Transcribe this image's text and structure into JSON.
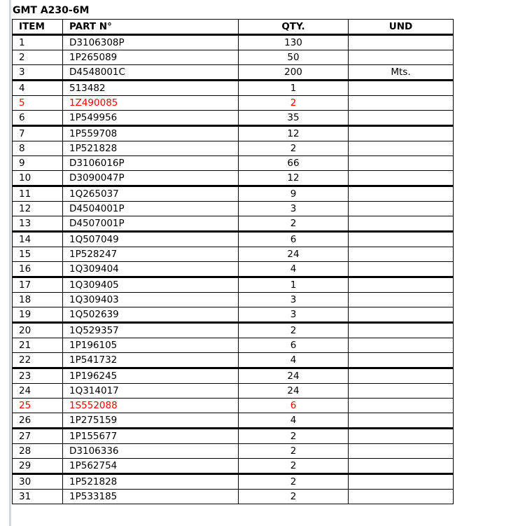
{
  "title": "GMT A230-6M",
  "headers": {
    "item": "ITEM",
    "part": "PART N°",
    "qty": "QTY.",
    "und": "UND"
  },
  "highlight_color": "#ff0000",
  "rows": [
    {
      "item": "1",
      "part": "D3106308P",
      "qty": "130",
      "und": ""
    },
    {
      "item": "2",
      "part": "1P265089",
      "qty": "50",
      "und": ""
    },
    {
      "item": "3",
      "part": "D4548001C",
      "qty": "200",
      "und": "Mts."
    },
    {
      "item": "4",
      "part": "513482",
      "qty": "1",
      "und": ""
    },
    {
      "item": "5",
      "part": "1Z490085",
      "qty": "2",
      "und": "",
      "highlight": true
    },
    {
      "item": "6",
      "part": "1P549956",
      "qty": "35",
      "und": ""
    },
    {
      "item": "7",
      "part": "1P559708",
      "qty": "12",
      "und": ""
    },
    {
      "item": "8",
      "part": "1P521828",
      "qty": "2",
      "und": ""
    },
    {
      "item": "9",
      "part": "D3106016P",
      "qty": "66",
      "und": ""
    },
    {
      "item": "10",
      "part": "D3090047P",
      "qty": "12",
      "und": ""
    },
    {
      "item": "11",
      "part": "1Q265037",
      "qty": "9",
      "und": ""
    },
    {
      "item": "12",
      "part": "D4504001P",
      "qty": "3",
      "und": ""
    },
    {
      "item": "13",
      "part": "D4507001P",
      "qty": "2",
      "und": ""
    },
    {
      "item": "14",
      "part": "1Q507049",
      "qty": "6",
      "und": ""
    },
    {
      "item": "15",
      "part": "1P528247",
      "qty": "24",
      "und": ""
    },
    {
      "item": "16",
      "part": "1Q309404",
      "qty": "4",
      "und": ""
    },
    {
      "item": "17",
      "part": "1Q309405",
      "qty": "1",
      "und": ""
    },
    {
      "item": "18",
      "part": "1Q309403",
      "qty": "3",
      "und": ""
    },
    {
      "item": "19",
      "part": "1Q502639",
      "qty": "3",
      "und": ""
    },
    {
      "item": "20",
      "part": "1Q529357",
      "qty": "2",
      "und": ""
    },
    {
      "item": "21",
      "part": "1P196105",
      "qty": "6",
      "und": ""
    },
    {
      "item": "22",
      "part": "1P541732",
      "qty": "4",
      "und": ""
    },
    {
      "item": "23",
      "part": "1P196245",
      "qty": "24",
      "und": ""
    },
    {
      "item": "24",
      "part": "1Q314017",
      "qty": "24",
      "und": ""
    },
    {
      "item": "25",
      "part": "1S552088",
      "qty": "6",
      "und": "",
      "highlight": true
    },
    {
      "item": "26",
      "part": "1P275159",
      "qty": "4",
      "und": ""
    },
    {
      "item": "27",
      "part": "1P155677",
      "qty": "2",
      "und": ""
    },
    {
      "item": "28",
      "part": "D3106336",
      "qty": "2",
      "und": ""
    },
    {
      "item": "29",
      "part": "1P562754",
      "qty": "2",
      "und": ""
    },
    {
      "item": "30",
      "part": "1P521828",
      "qty": "2",
      "und": ""
    },
    {
      "item": "31",
      "part": "1P533185",
      "qty": "2",
      "und": ""
    }
  ]
}
